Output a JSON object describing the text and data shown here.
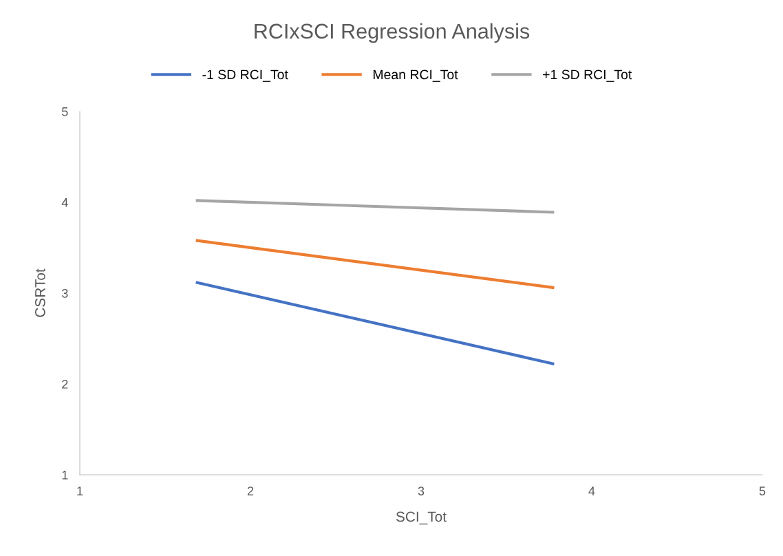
{
  "chart_data": {
    "type": "line",
    "title": "RCIxSCI Regression Analysis",
    "xlabel": "SCI_Tot",
    "ylabel": "CSRTot",
    "x": [
      1.68,
      3.78
    ],
    "series": [
      {
        "name": "-1 SD RCI_Tot",
        "color": "#4472c4",
        "values": [
          3.12,
          2.22
        ]
      },
      {
        "name": "Mean RCI_Tot",
        "color": "#ed7d31",
        "values": [
          3.58,
          3.06
        ]
      },
      {
        "name": "+1 SD RCI_Tot",
        "color": "#a5a5a5",
        "values": [
          4.02,
          3.89
        ]
      }
    ],
    "xlim": [
      1,
      5
    ],
    "xticks": [
      1,
      2,
      3,
      4,
      5
    ],
    "ylim": [
      1,
      5
    ],
    "yticks": [
      1,
      2,
      3,
      4,
      5
    ],
    "grid": false,
    "legend": "top",
    "marker": "none",
    "line_style": "solid"
  }
}
